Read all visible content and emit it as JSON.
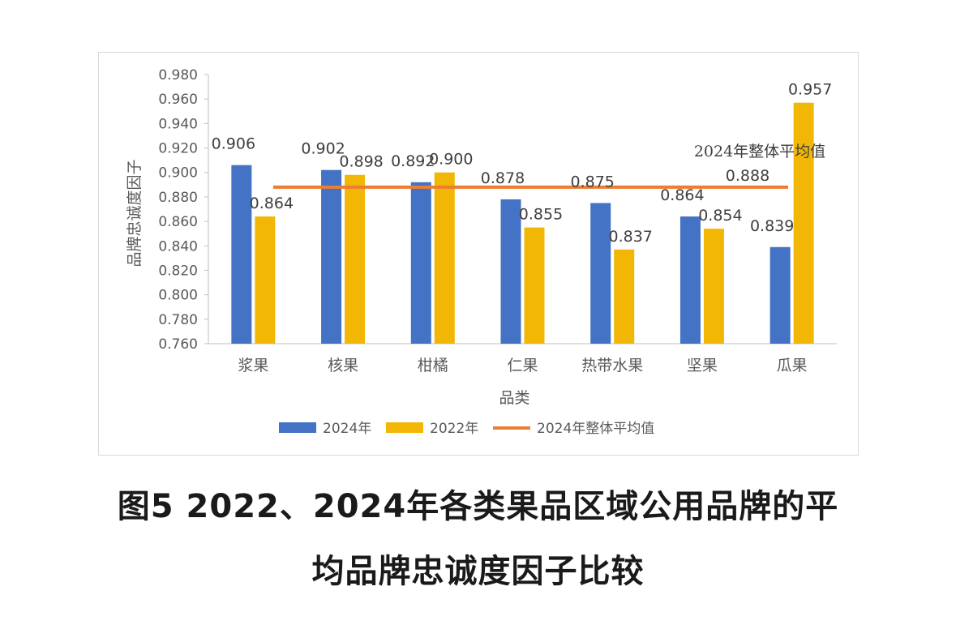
{
  "chart_data": {
    "type": "bar",
    "ylabel": "品牌忠诚度因子",
    "xlabel": "品类",
    "categories": [
      "浆果",
      "核果",
      "柑橘",
      "仁果",
      "热带水果",
      "坚果",
      "瓜果"
    ],
    "series": [
      {
        "name": "2024年",
        "color": "#4472C4",
        "values": [
          0.906,
          0.902,
          0.892,
          0.878,
          0.875,
          0.864,
          0.839
        ]
      },
      {
        "name": "2022年",
        "color": "#F2B705",
        "values": [
          0.864,
          0.898,
          0.9,
          0.855,
          0.837,
          0.854,
          0.957
        ]
      }
    ],
    "reference_line": {
      "name": "2024年整体平均值",
      "value": 0.888,
      "color": "#ED7D31",
      "label": "2024年整体平均值",
      "value_label": "0.888"
    },
    "ylim": [
      0.76,
      0.98
    ],
    "yticks": [
      "0.760",
      "0.780",
      "0.800",
      "0.820",
      "0.840",
      "0.860",
      "0.880",
      "0.900",
      "0.920",
      "0.940",
      "0.960",
      "0.980"
    ],
    "data_labels": {
      "2024年": [
        "0.906",
        "0.902",
        "0.892",
        "0.878",
        "0.875",
        "0.864",
        "0.839"
      ],
      "2022年": [
        "0.864",
        "0.898",
        "0.900",
        "0.855",
        "0.837",
        "0.854",
        "0.957"
      ]
    },
    "grid": false,
    "legend_position": "bottom"
  },
  "caption": {
    "line1": "图5 2022、2024年各类果品区域公用品牌的平",
    "line2": "均品牌忠诚度因子比较"
  }
}
